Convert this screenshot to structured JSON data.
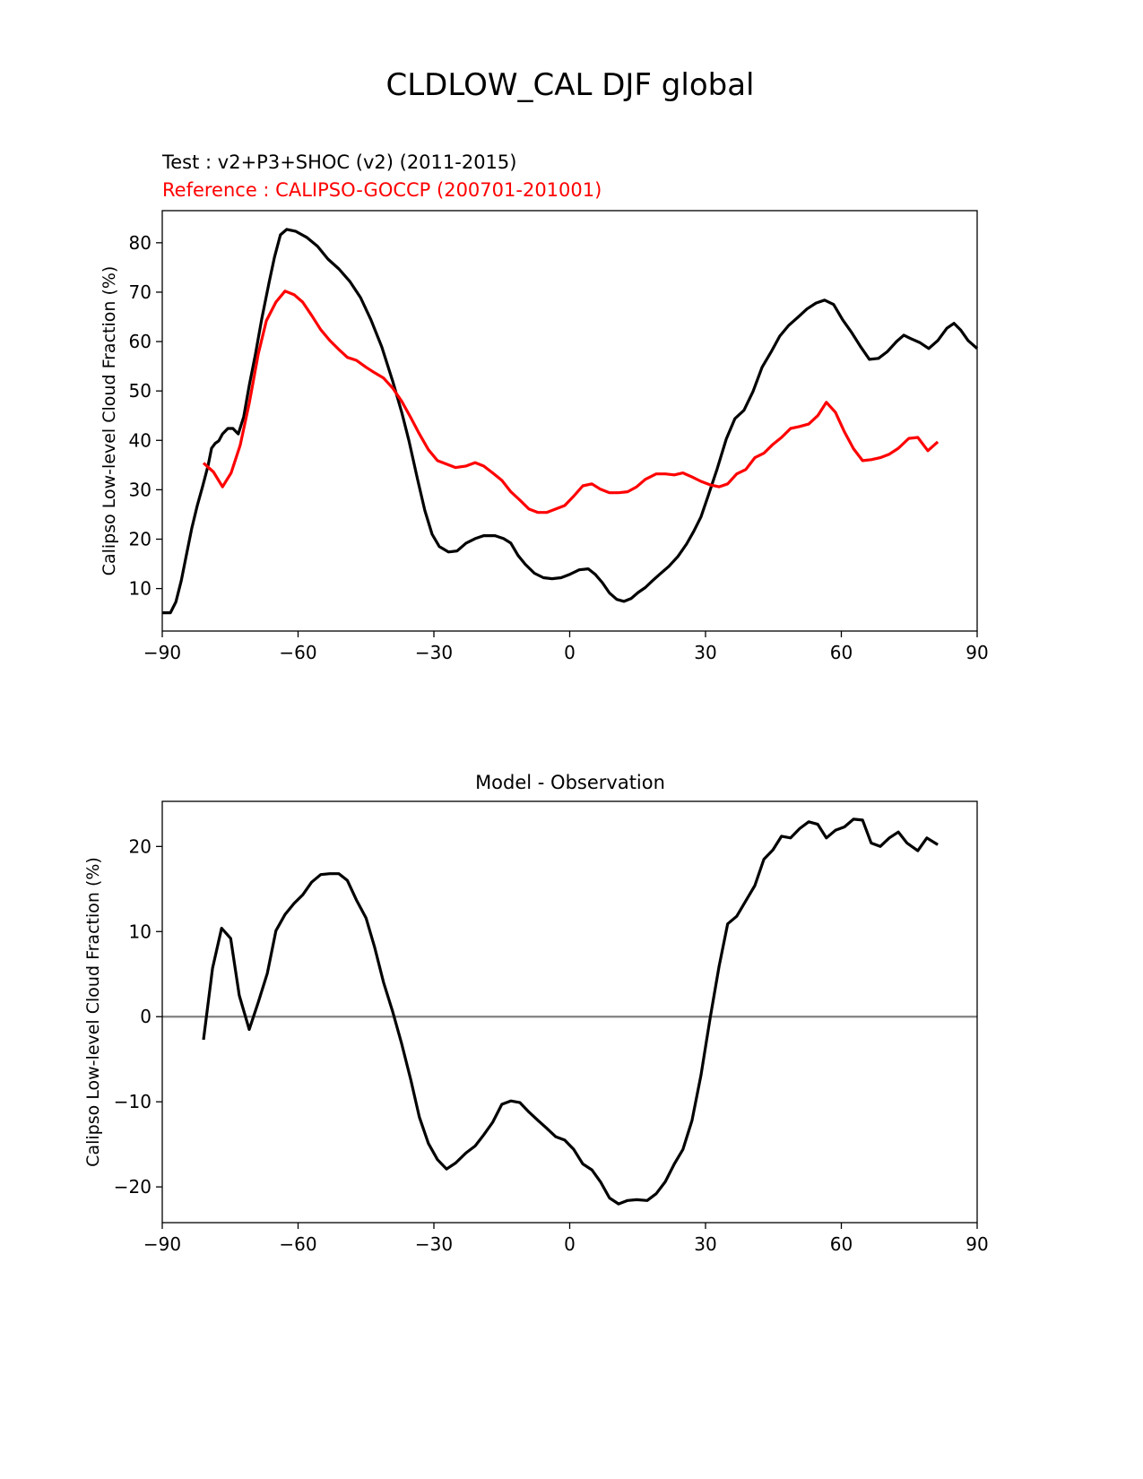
{
  "chart_data": [
    {
      "type": "line",
      "suptitle": "CLDLOW_CAL DJF global",
      "title_test": "Test : v2+P3+SHOC (v2) (2011-2015)",
      "title_reference": "Reference : CALIPSO-GOCCP (200701-201001)",
      "xlabel": "",
      "ylabel": "Calipso Low-level Cloud Fraction (%)",
      "xlim": [
        -90,
        90
      ],
      "ylim": [
        1.4,
        86.5
      ],
      "xticks": [
        -90,
        -60,
        -30,
        0,
        30,
        60,
        90
      ],
      "xtick_labels": [
        "−90",
        "−60",
        "−30",
        "0",
        "30",
        "60",
        "90"
      ],
      "yticks": [
        10,
        20,
        30,
        40,
        50,
        60,
        70,
        80
      ],
      "ytick_labels": [
        "10",
        "20",
        "30",
        "40",
        "50",
        "60",
        "70",
        "80"
      ],
      "grid": false,
      "series": [
        {
          "name": "Test",
          "color": "#000000",
          "x": [
            -90,
            -88.2,
            -87,
            -85.8,
            -84.7,
            -83.5,
            -82.3,
            -81.1,
            -79.9,
            -79.1,
            -78.3,
            -77.5,
            -76.7,
            -75.5,
            -74.4,
            -73.2,
            -72,
            -70.8,
            -69.4,
            -68,
            -66.4,
            -65.2,
            -63.9,
            -62.5,
            -60.5,
            -58.1,
            -55.7,
            -53.4,
            -51,
            -48.6,
            -46.2,
            -43.9,
            -41.5,
            -39.1,
            -37.1,
            -35.5,
            -33.6,
            -32,
            -30.4,
            -28.8,
            -26.8,
            -24.9,
            -22.9,
            -20.9,
            -19,
            -16.5,
            -14.6,
            -13,
            -11.4,
            -9.8,
            -7.8,
            -5.8,
            -3.9,
            -1.9,
            0.1,
            2.1,
            4.1,
            5.6,
            7.2,
            8.8,
            10.4,
            12,
            13.6,
            15.1,
            16.7,
            18.3,
            19.9,
            21.9,
            23.9,
            25.8,
            27.4,
            29,
            30.6,
            32.6,
            34.6,
            36.5,
            38.5,
            40.5,
            42.5,
            44.5,
            46.4,
            48.4,
            50.4,
            52.4,
            54.4,
            56.3,
            58.3,
            60.3,
            62.3,
            64.3,
            66.2,
            68.2,
            70.2,
            72.2,
            73.8,
            75.3,
            77.3,
            79.3,
            81.3,
            83.3,
            84.9,
            86.4,
            88,
            90
          ],
          "y": [
            5.1,
            5.1,
            7.3,
            11.6,
            16.7,
            22.1,
            26.7,
            30.6,
            34.8,
            38.4,
            39.4,
            39.9,
            41.3,
            42.4,
            42.4,
            41.3,
            44.8,
            51.1,
            57.5,
            64.7,
            72,
            77.1,
            81.6,
            82.7,
            82.3,
            81.1,
            79.3,
            76.7,
            74.7,
            72.2,
            68.9,
            64.4,
            58.9,
            52,
            45.7,
            39.9,
            32.1,
            25.8,
            21,
            18.5,
            17.4,
            17.6,
            19.2,
            20.1,
            20.7,
            20.7,
            20.1,
            19.2,
            16.7,
            14.9,
            13.1,
            12.2,
            12,
            12.2,
            12.9,
            13.8,
            14,
            12.9,
            11.2,
            9.1,
            7.8,
            7.4,
            8,
            9.2,
            10.2,
            11.6,
            12.9,
            14.5,
            16.5,
            19,
            21.6,
            24.5,
            28.8,
            34.3,
            40.3,
            44.4,
            46.1,
            49.9,
            54.8,
            57.9,
            61.1,
            63.3,
            64.9,
            66.6,
            67.8,
            68.4,
            67.5,
            64.4,
            61.8,
            58.9,
            56.4,
            56.6,
            58,
            60,
            61.3,
            60.6,
            59.8,
            58.6,
            60.2,
            62.7,
            63.7,
            62.3,
            60.2,
            58.6
          ]
        },
        {
          "name": "Reference",
          "color": "#ff0000",
          "x": [
            -80.9,
            -78.7,
            -76.7,
            -74.8,
            -72.8,
            -70.8,
            -68.8,
            -67,
            -64.9,
            -62.9,
            -60.9,
            -59,
            -57,
            -55,
            -53,
            -51,
            -49.1,
            -47.1,
            -45,
            -43.1,
            -41.1,
            -39.1,
            -37.1,
            -35.1,
            -33.2,
            -31.2,
            -29.2,
            -27.2,
            -25.2,
            -22.9,
            -20.9,
            -19,
            -17,
            -15,
            -13,
            -11,
            -9,
            -7,
            -5.1,
            -3.1,
            -1.1,
            0.9,
            2.9,
            4.9,
            6.8,
            8.8,
            10.8,
            12.8,
            14.8,
            16.7,
            19.1,
            21.1,
            23.1,
            25,
            27,
            29,
            31,
            33,
            34.9,
            36.9,
            38.9,
            40.9,
            42.9,
            44.9,
            46.8,
            48.8,
            50.8,
            52.8,
            54.8,
            56.7,
            58.7,
            60.7,
            62.7,
            64.7,
            66.6,
            68.6,
            70.6,
            72.6,
            74.9,
            76.9,
            79.1,
            81.3
          ],
          "y": [
            35.4,
            33.6,
            30.6,
            33.4,
            39,
            47.5,
            57.5,
            64.2,
            68,
            70.2,
            69.5,
            68,
            65.3,
            62.4,
            60.2,
            58.4,
            56.8,
            56.2,
            54.8,
            53.7,
            52.6,
            50.6,
            47.9,
            44.6,
            41.3,
            38.1,
            35.9,
            35.2,
            34.5,
            34.8,
            35.5,
            34.8,
            33.4,
            31.9,
            29.6,
            27.9,
            26.1,
            25.4,
            25.4,
            26.1,
            26.8,
            28.7,
            30.8,
            31.2,
            30.1,
            29.4,
            29.4,
            29.6,
            30.6,
            32.1,
            33.2,
            33.2,
            33,
            33.4,
            32.6,
            31.7,
            31,
            30.6,
            31.2,
            33.2,
            34.1,
            36.5,
            37.4,
            39.2,
            40.6,
            42.4,
            42.8,
            43.3,
            45,
            47.7,
            45.7,
            41.7,
            38.3,
            35.9,
            36.1,
            36.5,
            37.2,
            38.4,
            40.4,
            40.6,
            37.9,
            39.7
          ]
        }
      ]
    },
    {
      "type": "line",
      "title": "Model - Observation",
      "xlabel": "",
      "ylabel": "Calipso Low-level Cloud Fraction (%)",
      "xlim": [
        -90,
        90
      ],
      "ylim": [
        -24.2,
        25.3
      ],
      "xticks": [
        -90,
        -60,
        -30,
        0,
        30,
        60,
        90
      ],
      "xtick_labels": [
        "−90",
        "−60",
        "−30",
        "0",
        "30",
        "60",
        "90"
      ],
      "yticks": [
        -20,
        -10,
        0,
        10,
        20
      ],
      "ytick_labels": [
        "−20",
        "−10",
        "0",
        "10",
        "20"
      ],
      "grid": false,
      "zero_line_color": "#808080",
      "series": [
        {
          "name": "Model - Observation",
          "color": "#000000",
          "x": [
            -80.9,
            -78.9,
            -76.9,
            -74.9,
            -73,
            -70.8,
            -68.8,
            -66.8,
            -64.9,
            -62.9,
            -60.9,
            -59,
            -57,
            -55,
            -53,
            -51,
            -49.1,
            -47.1,
            -45,
            -43.1,
            -41.1,
            -39.1,
            -37.1,
            -35.1,
            -33.2,
            -31.2,
            -29.2,
            -27.2,
            -25.2,
            -22.9,
            -20.9,
            -19,
            -17,
            -15,
            -13,
            -11,
            -9,
            -7,
            -5.1,
            -3.1,
            -1.1,
            0.9,
            2.9,
            4.9,
            6.8,
            8.8,
            10.8,
            12.8,
            14.8,
            17.1,
            19.1,
            21.1,
            23.1,
            25,
            27,
            29,
            31,
            33,
            34.9,
            36.9,
            38.9,
            40.9,
            42.9,
            44.9,
            46.8,
            48.8,
            50.8,
            52.8,
            54.8,
            56.7,
            58.7,
            60.7,
            62.7,
            64.7,
            66.6,
            68.6,
            70.6,
            72.6,
            74.5,
            76.9,
            78.9,
            81.3
          ],
          "y": [
            -2.7,
            5.7,
            10.4,
            9.2,
            2.5,
            -1.5,
            1.7,
            5.1,
            10.1,
            12,
            13.3,
            14.3,
            15.8,
            16.7,
            16.8,
            16.8,
            16,
            13.7,
            11.6,
            8.2,
            4,
            0.6,
            -3.2,
            -7.4,
            -11.8,
            -14.9,
            -16.8,
            -17.9,
            -17.2,
            -16,
            -15.2,
            -13.9,
            -12.4,
            -10.3,
            -9.9,
            -10.1,
            -11.2,
            -12.2,
            -13.1,
            -14.1,
            -14.5,
            -15.6,
            -17.3,
            -18,
            -19.4,
            -21.3,
            -22,
            -21.6,
            -21.5,
            -21.6,
            -20.8,
            -19.4,
            -17.3,
            -15.6,
            -12.2,
            -6.9,
            -0.2,
            5.9,
            10.9,
            11.8,
            13.6,
            15.4,
            18.5,
            19.6,
            21.2,
            21,
            22.1,
            22.9,
            22.6,
            21,
            21.9,
            22.3,
            23.2,
            23.1,
            20.4,
            20,
            21,
            21.7,
            20.4,
            19.5,
            21,
            20.2
          ]
        }
      ]
    }
  ]
}
